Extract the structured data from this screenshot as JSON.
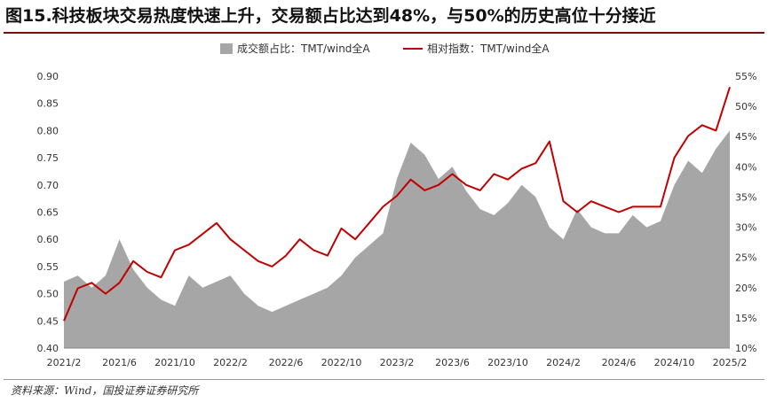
{
  "header": {
    "title": "图15.科技板块交易热度快速上升，交易额占比达到48%，与50%的历史高位十分接近"
  },
  "footer": {
    "source": "资料来源：Wind，国投证券证券研究所"
  },
  "colors": {
    "area": "#a6a6a6",
    "line": "#c00000",
    "title_rule": "#7a0c0c"
  },
  "chart_data": {
    "type": "line",
    "title": "",
    "x_tick_labels": [
      "2021/2",
      "2021/6",
      "2021/10",
      "2022/2",
      "2022/6",
      "2022/10",
      "2023/2",
      "2023/6",
      "2023/10",
      "2024/2",
      "2024/6",
      "2024/10",
      "2025/2"
    ],
    "left_axis": {
      "label": "",
      "min": 0.4,
      "max": 0.9,
      "ticks": [
        "0.40",
        "0.45",
        "0.50",
        "0.55",
        "0.60",
        "0.65",
        "0.70",
        "0.75",
        "0.80",
        "0.85",
        "0.90"
      ]
    },
    "right_axis": {
      "label": "",
      "min": 10,
      "max": 55,
      "unit": "%",
      "ticks": [
        "10%",
        "15%",
        "20%",
        "25%",
        "30%",
        "35%",
        "40%",
        "45%",
        "50%",
        "55%"
      ]
    },
    "legend_position": "top-center",
    "grid": false,
    "series": [
      {
        "name": "成交额占比：TMT/wind全A",
        "type": "area",
        "axis": "right",
        "x": [
          "2021/2",
          "2021/3",
          "2021/4",
          "2021/5",
          "2021/6",
          "2021/7",
          "2021/8",
          "2021/9",
          "2021/10",
          "2021/11",
          "2021/12",
          "2022/1",
          "2022/2",
          "2022/3",
          "2022/4",
          "2022/5",
          "2022/6",
          "2022/7",
          "2022/8",
          "2022/9",
          "2022/10",
          "2022/11",
          "2022/12",
          "2023/1",
          "2023/2",
          "2023/3",
          "2023/4",
          "2023/5",
          "2023/6",
          "2023/7",
          "2023/8",
          "2023/9",
          "2023/10",
          "2023/11",
          "2023/12",
          "2024/1",
          "2024/2",
          "2024/3",
          "2024/4",
          "2024/5",
          "2024/6",
          "2024/7",
          "2024/8",
          "2024/9",
          "2024/10",
          "2024/11",
          "2024/12",
          "2025/1",
          "2025/2"
        ],
        "values": [
          21,
          22,
          20,
          22,
          28,
          23,
          20,
          18,
          17,
          22,
          20,
          21,
          22,
          19,
          17,
          16,
          17,
          18,
          19,
          20,
          22,
          25,
          27,
          29,
          38,
          44,
          42,
          38,
          40,
          36,
          33,
          32,
          34,
          37,
          35,
          30,
          28,
          33,
          30,
          29,
          29,
          32,
          30,
          31,
          37,
          41,
          39,
          43,
          46
        ]
      },
      {
        "name": "相对指数：TMT/wind全A",
        "type": "line",
        "axis": "left",
        "x": [
          "2021/2",
          "2021/3",
          "2021/4",
          "2021/5",
          "2021/6",
          "2021/7",
          "2021/8",
          "2021/9",
          "2021/10",
          "2021/11",
          "2021/12",
          "2022/1",
          "2022/2",
          "2022/3",
          "2022/4",
          "2022/5",
          "2022/6",
          "2022/7",
          "2022/8",
          "2022/9",
          "2022/10",
          "2022/11",
          "2022/12",
          "2023/1",
          "2023/2",
          "2023/3",
          "2023/4",
          "2023/5",
          "2023/6",
          "2023/7",
          "2023/8",
          "2023/9",
          "2023/10",
          "2023/11",
          "2023/12",
          "2024/1",
          "2024/2",
          "2024/3",
          "2024/4",
          "2024/5",
          "2024/6",
          "2024/7",
          "2024/8",
          "2024/9",
          "2024/10",
          "2024/11",
          "2024/12",
          "2025/1",
          "2025/2"
        ],
        "values": [
          0.45,
          0.51,
          0.52,
          0.5,
          0.52,
          0.56,
          0.54,
          0.53,
          0.58,
          0.59,
          0.61,
          0.63,
          0.6,
          0.58,
          0.56,
          0.55,
          0.57,
          0.6,
          0.58,
          0.57,
          0.62,
          0.6,
          0.63,
          0.66,
          0.68,
          0.71,
          0.69,
          0.7,
          0.72,
          0.7,
          0.69,
          0.72,
          0.71,
          0.73,
          0.74,
          0.78,
          0.67,
          0.65,
          0.67,
          0.66,
          0.65,
          0.66,
          0.66,
          0.66,
          0.75,
          0.79,
          0.81,
          0.8,
          0.88
        ]
      }
    ]
  }
}
